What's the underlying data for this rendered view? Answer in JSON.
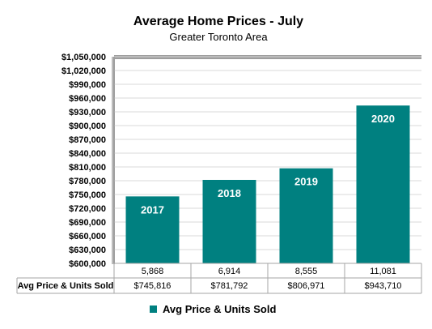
{
  "chart_data": {
    "type": "bar",
    "title": "Average Home Prices - July",
    "subtitle": "Greater Toronto Area",
    "categories": [
      "2017",
      "2018",
      "2019",
      "2020"
    ],
    "series": [
      {
        "name": "Avg Price & Units Sold",
        "values": [
          745816,
          781792,
          806971,
          943710
        ],
        "color": "#008080"
      }
    ],
    "units_sold": [
      "5,868",
      "6,914",
      "8,555",
      "11,081"
    ],
    "price_labels": [
      "$745,816",
      "$781,792",
      "$806,971",
      "$943,710"
    ],
    "ylim": [
      600000,
      1050000
    ],
    "ytick_step": 30000,
    "y_tick_labels": [
      "$600,000",
      "$630,000",
      "$660,000",
      "$690,000",
      "$720,000",
      "$750,000",
      "$780,000",
      "$810,000",
      "$840,000",
      "$870,000",
      "$900,000",
      "$930,000",
      "$960,000",
      "$990,000",
      "$1,020,000",
      "$1,050,000"
    ],
    "table_row_label": "Avg Price & Units Sold",
    "legend": {
      "label": "Avg Price & Units Sold",
      "position": "bottom"
    },
    "grid": true,
    "bar_color": "#008080",
    "grid_color": "#d9d9d9"
  }
}
